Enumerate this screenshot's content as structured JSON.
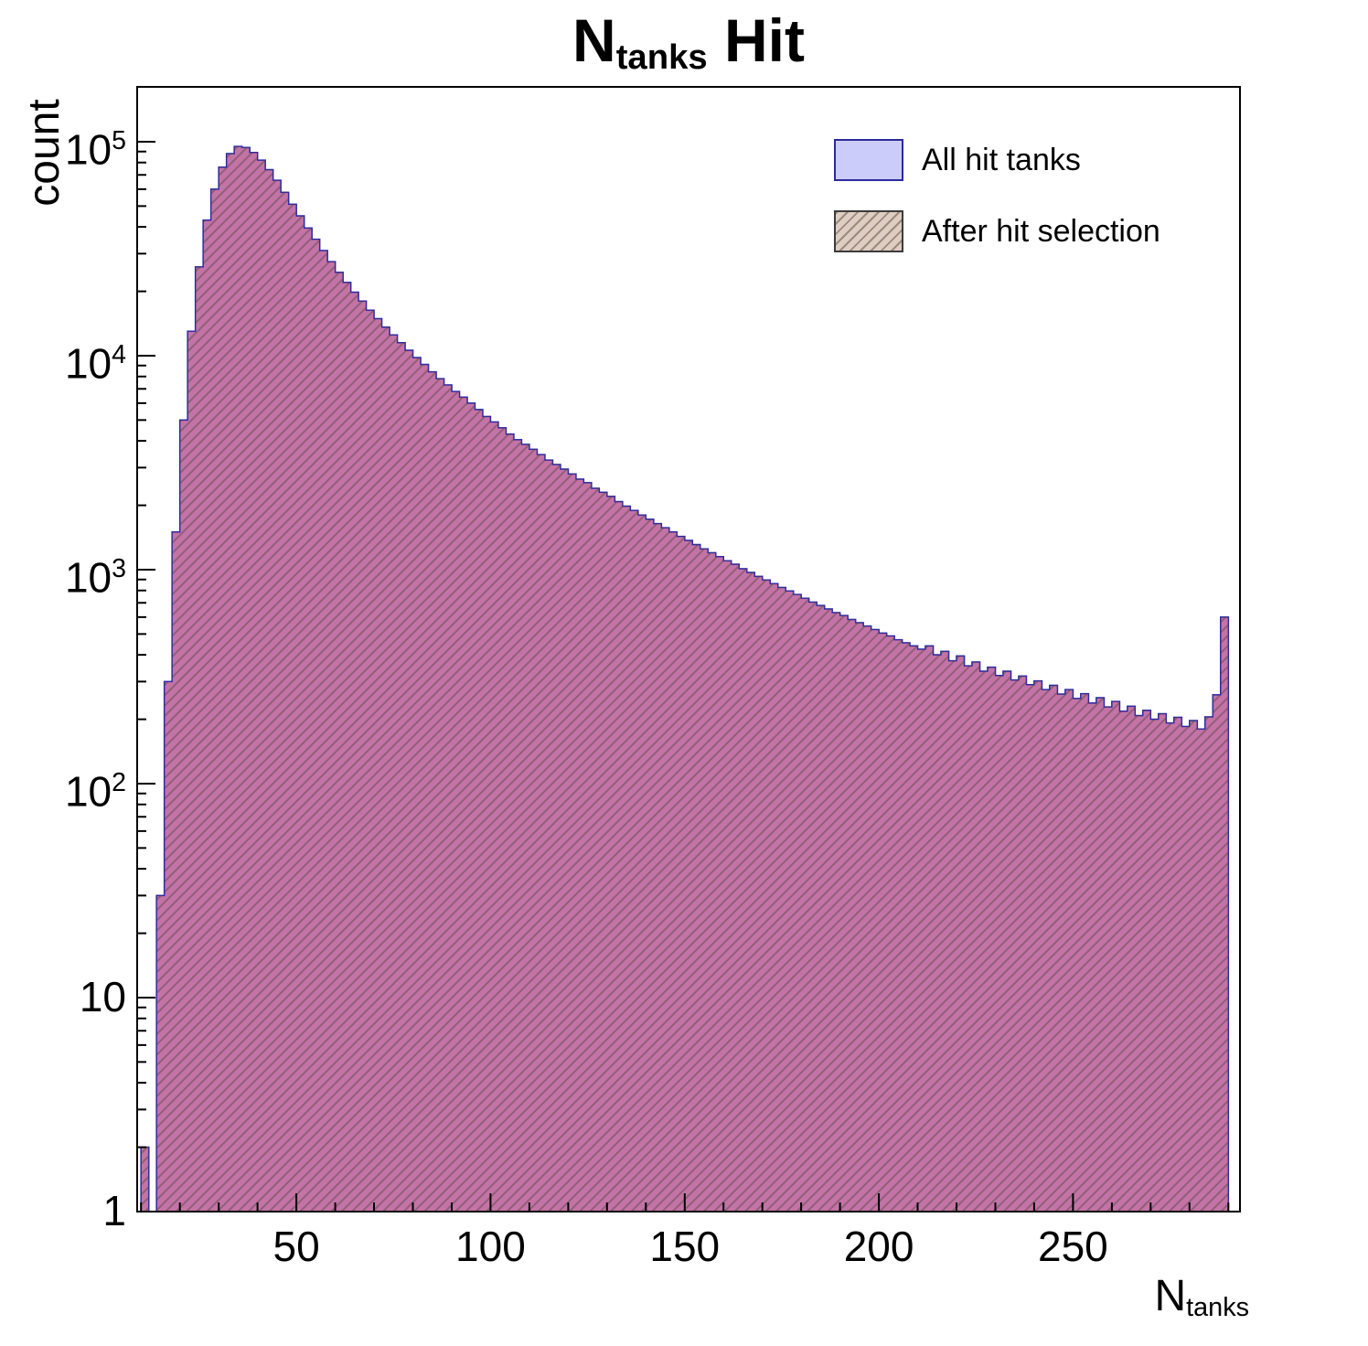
{
  "title": {
    "prefix": "N",
    "sub": "tanks",
    "suffix": " Hit"
  },
  "axes": {
    "y_label": "count",
    "x_label_prefix": "N",
    "x_label_sub": "tanks",
    "x_ticks": [
      {
        "value": 50,
        "label": "50"
      },
      {
        "value": 100,
        "label": "100"
      },
      {
        "value": 150,
        "label": "150"
      },
      {
        "value": 200,
        "label": "200"
      },
      {
        "value": 250,
        "label": "250"
      }
    ],
    "y_ticks": [
      {
        "value": 1,
        "base": "1",
        "exp": ""
      },
      {
        "value": 10,
        "base": "10",
        "exp": ""
      },
      {
        "value": 100,
        "base": "10",
        "exp": "2"
      },
      {
        "value": 1000,
        "base": "10",
        "exp": "3"
      },
      {
        "value": 10000,
        "base": "10",
        "exp": "4"
      },
      {
        "value": 100000,
        "base": "10",
        "exp": "5"
      }
    ]
  },
  "legend": {
    "items": [
      {
        "label": "All hit tanks",
        "swatch": "blue-solid"
      },
      {
        "label": "After hit selection",
        "swatch": "pink-hatched"
      }
    ]
  },
  "colors": {
    "blue_fill": "#ccccfa",
    "pink_fill": "#c25a90",
    "line": "#2b2ba2",
    "hatch_line": "rgba(80,70,60,0.45)",
    "frame": "#000000"
  },
  "chart_data": {
    "type": "bar",
    "histogram": true,
    "yscale": "log",
    "title": "N_tanks Hit",
    "xlabel": "N_tanks",
    "ylabel": "count",
    "xlim": [
      9,
      293
    ],
    "ylim": [
      1,
      180000
    ],
    "legend_position": "top-right",
    "bin_start": 10,
    "bin_width": 2,
    "counts": [
      2,
      0,
      30,
      300,
      1500,
      5000,
      13000,
      26000,
      43000,
      60000,
      76000,
      88000,
      95000,
      94000,
      89000,
      82000,
      74000,
      66000,
      58000,
      51000,
      45000,
      39500,
      35000,
      31000,
      27500,
      24500,
      22000,
      19800,
      18000,
      16300,
      14900,
      13600,
      12500,
      11500,
      10600,
      9800,
      9100,
      8400,
      7800,
      7300,
      6800,
      6400,
      6000,
      5600,
      5200,
      4900,
      4600,
      4300,
      4050,
      3850,
      3650,
      3450,
      3250,
      3100,
      2950,
      2800,
      2650,
      2550,
      2400,
      2300,
      2200,
      2080,
      1980,
      1890,
      1800,
      1720,
      1640,
      1570,
      1500,
      1430,
      1370,
      1310,
      1250,
      1200,
      1150,
      1100,
      1060,
      1010,
      970,
      930,
      895,
      860,
      825,
      795,
      765,
      735,
      705,
      680,
      655,
      630,
      610,
      585,
      565,
      545,
      525,
      505,
      490,
      470,
      455,
      440,
      425,
      440,
      400,
      415,
      375,
      395,
      355,
      370,
      335,
      350,
      320,
      335,
      305,
      318,
      290,
      302,
      275,
      288,
      262,
      275,
      250,
      263,
      238,
      252,
      228,
      242,
      218,
      230,
      208,
      220,
      200,
      212,
      192,
      204,
      185,
      197,
      180,
      205,
      260,
      600
    ],
    "series": [
      {
        "name": "All hit tanks",
        "values_from": "counts",
        "style": "solid-blue"
      },
      {
        "name": "After hit selection",
        "values_from": "counts",
        "style": "pink-hatched-overlay"
      }
    ]
  }
}
